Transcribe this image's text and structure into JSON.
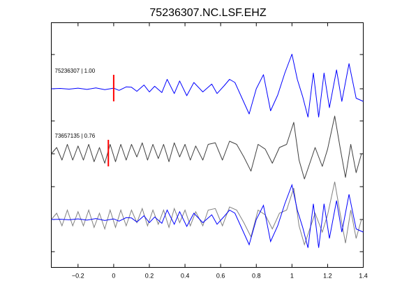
{
  "chart_data": {
    "type": "line",
    "title": "75236307.NC.LSF.EHZ",
    "xlabel": "",
    "ylabel": "",
    "xlim": [
      -0.35,
      1.4
    ],
    "xticks": [
      -0.2,
      0,
      0.2,
      0.4,
      0.6,
      0.8,
      1,
      1.2,
      1.4
    ],
    "xtick_labels": [
      "−0.2",
      "0",
      "0.2",
      "0.4",
      "0.6",
      "0.8",
      "1",
      "1.2",
      "1.4"
    ],
    "grid": false,
    "colors": {
      "template": "#0000ff",
      "match": "#404040",
      "overlay": "#808080",
      "pick": "#ff0000"
    },
    "traces": [
      {
        "label": "75236307 | 1.00",
        "pick_time": 0.0,
        "color": "template",
        "points": [
          [
            -0.35,
            0
          ],
          [
            -0.3,
            0.01
          ],
          [
            -0.25,
            -0.01
          ],
          [
            -0.2,
            0.02
          ],
          [
            -0.15,
            -0.02
          ],
          [
            -0.1,
            0.03
          ],
          [
            -0.05,
            -0.03
          ],
          [
            0,
            0.02
          ],
          [
            0.03,
            -0.05
          ],
          [
            0.07,
            0.06
          ],
          [
            0.1,
            0.05
          ],
          [
            0.13,
            -0.08
          ],
          [
            0.17,
            0.12
          ],
          [
            0.2,
            -0.1
          ],
          [
            0.23,
            0.08
          ],
          [
            0.27,
            -0.12
          ],
          [
            0.3,
            0.3
          ],
          [
            0.34,
            -0.15
          ],
          [
            0.37,
            0.25
          ],
          [
            0.41,
            -0.22
          ],
          [
            0.45,
            0.2
          ],
          [
            0.5,
            -0.1
          ],
          [
            0.55,
            0.15
          ],
          [
            0.58,
            -0.15
          ],
          [
            0.62,
            0.1
          ],
          [
            0.65,
            0.3
          ],
          [
            0.68,
            0.2
          ],
          [
            0.72,
            -0.3
          ],
          [
            0.76,
            -0.8
          ],
          [
            0.8,
            0.0
          ],
          [
            0.84,
            0.45
          ],
          [
            0.88,
            -0.7
          ],
          [
            0.92,
            -0.2
          ],
          [
            0.96,
            0.5
          ],
          [
            1.0,
            1.1
          ],
          [
            1.03,
            0.3
          ],
          [
            1.06,
            -0.25
          ],
          [
            1.09,
            -0.9
          ],
          [
            1.12,
            0.5
          ],
          [
            1.15,
            -0.9
          ],
          [
            1.18,
            0.5
          ],
          [
            1.21,
            -0.6
          ],
          [
            1.25,
            0.6
          ],
          [
            1.28,
            -0.4
          ],
          [
            1.32,
            0.8
          ],
          [
            1.36,
            -0.3
          ],
          [
            1.4,
            -0.4
          ]
        ]
      },
      {
        "label": "73657135 | 0.76",
        "pick_time": -0.03,
        "color": "match",
        "points": [
          [
            -0.35,
            0
          ],
          [
            -0.32,
            0.2
          ],
          [
            -0.29,
            -0.2
          ],
          [
            -0.26,
            0.3
          ],
          [
            -0.23,
            -0.2
          ],
          [
            -0.2,
            0.25
          ],
          [
            -0.17,
            -0.2
          ],
          [
            -0.14,
            0.3
          ],
          [
            -0.11,
            -0.25
          ],
          [
            -0.08,
            0.2
          ],
          [
            -0.05,
            -0.3
          ],
          [
            -0.02,
            0.3
          ],
          [
            0.01,
            -0.25
          ],
          [
            0.04,
            0.3
          ],
          [
            0.07,
            -0.2
          ],
          [
            0.1,
            0.3
          ],
          [
            0.13,
            -0.1
          ],
          [
            0.16,
            0.35
          ],
          [
            0.19,
            -0.2
          ],
          [
            0.22,
            0.3
          ],
          [
            0.25,
            -0.15
          ],
          [
            0.28,
            0.3
          ],
          [
            0.31,
            -0.25
          ],
          [
            0.34,
            0.35
          ],
          [
            0.37,
            -0.1
          ],
          [
            0.4,
            0.3
          ],
          [
            0.43,
            -0.2
          ],
          [
            0.46,
            0.25
          ],
          [
            0.5,
            -0.2
          ],
          [
            0.53,
            0.3
          ],
          [
            0.57,
            0.35
          ],
          [
            0.61,
            -0.2
          ],
          [
            0.65,
            0.4
          ],
          [
            0.69,
            0.3
          ],
          [
            0.73,
            -0.1
          ],
          [
            0.77,
            -0.55
          ],
          [
            0.81,
            0.3
          ],
          [
            0.85,
            0.15
          ],
          [
            0.89,
            -0.3
          ],
          [
            0.93,
            0.2
          ],
          [
            0.97,
            0.3
          ],
          [
            1.01,
            1.0
          ],
          [
            1.04,
            -0.2
          ],
          [
            1.07,
            -0.8
          ],
          [
            1.1,
            -0.3
          ],
          [
            1.13,
            0.2
          ],
          [
            1.17,
            -0.4
          ],
          [
            1.2,
            0.15
          ],
          [
            1.24,
            1.2
          ],
          [
            1.27,
            0.2
          ],
          [
            1.3,
            -0.75
          ],
          [
            1.33,
            0.3
          ],
          [
            1.36,
            -0.6
          ],
          [
            1.39,
            0.0
          ]
        ]
      }
    ],
    "overlay": {
      "label": "",
      "series": [
        "75236307 | 1.00",
        "73657135 | 0.76"
      ]
    }
  }
}
